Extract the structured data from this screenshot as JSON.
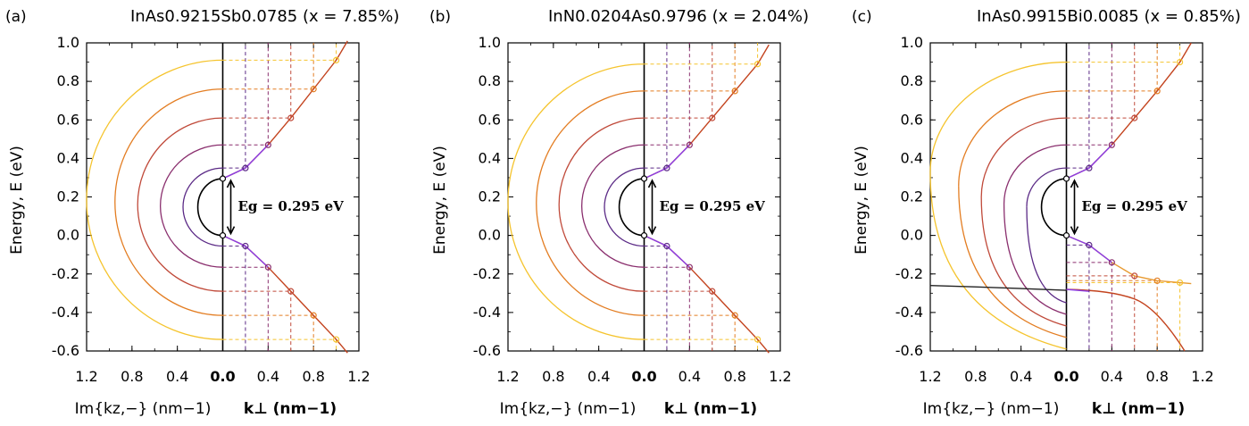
{
  "colors": {
    "levels": [
      "#5b2a86",
      "#8a2f6e",
      "#c04a3a",
      "#e37d22",
      "#f5c42e"
    ],
    "gap": "#000000",
    "dispersion_purple": "#8b3de6",
    "dispersion_red": "#c3431e",
    "dispersion_yellow": "#f2c12c"
  },
  "chart_data": [
    {
      "panel_letter": "(a)",
      "title_material": "InAs0.9215Sb0.0785",
      "title_x": "(x = 7.85%)",
      "type": "line",
      "ylabel": "Energy, E (eV)",
      "xlabel_left": "Im{kz,−} (nm−1)",
      "xlabel_right": "k⊥ (nm−1)",
      "ylim": [
        -0.6,
        1.0
      ],
      "xlim_left": [
        1.2,
        0.0
      ],
      "xlim_right": [
        0.0,
        1.2
      ],
      "yticks": [
        "-0.6",
        "-0.4",
        "-0.2",
        "0.0",
        "0.2",
        "0.4",
        "0.6",
        "0.8",
        "1.0"
      ],
      "xticks_left": [
        "1.2",
        "0.8",
        "0.4",
        "0.0"
      ],
      "xticks_right": [
        "0.4",
        "0.8",
        "1.2"
      ],
      "gap_label": "Eg = 0.295 eV",
      "gap": [
        0.0,
        0.295
      ],
      "bi_band": false,
      "k_points": [
        0.2,
        0.4,
        0.6,
        0.8,
        1.0
      ],
      "cb_energies": [
        0.35,
        0.47,
        0.61,
        0.76,
        0.91
      ],
      "vb_energies": [
        -0.055,
        -0.165,
        -0.29,
        -0.415,
        -0.54
      ],
      "semicircle_max_im": [
        0.35,
        0.55,
        0.75,
        0.95,
        1.2
      ]
    },
    {
      "panel_letter": "(b)",
      "title_material": "InN0.0204As0.9796",
      "title_x": "(x = 2.04%)",
      "type": "line",
      "ylabel": "Energy, E (eV)",
      "xlabel_left": "Im{kz,−} (nm−1)",
      "xlabel_right": "k⊥ (nm−1)",
      "ylim": [
        -0.6,
        1.0
      ],
      "xlim_left": [
        1.2,
        0.0
      ],
      "xlim_right": [
        0.0,
        1.2
      ],
      "yticks": [
        "-0.6",
        "-0.4",
        "-0.2",
        "0.0",
        "0.2",
        "0.4",
        "0.6",
        "0.8",
        "1.0"
      ],
      "xticks_left": [
        "1.2",
        "0.8",
        "0.4",
        "0.0"
      ],
      "xticks_right": [
        "0.4",
        "0.8",
        "1.2"
      ],
      "gap_label": "Eg = 0.295 eV",
      "gap": [
        0.0,
        0.295
      ],
      "bi_band": false,
      "k_points": [
        0.2,
        0.4,
        0.6,
        0.8,
        1.0
      ],
      "cb_energies": [
        0.35,
        0.47,
        0.61,
        0.75,
        0.89
      ],
      "vb_energies": [
        -0.055,
        -0.165,
        -0.29,
        -0.415,
        -0.54
      ],
      "semicircle_max_im": [
        0.35,
        0.55,
        0.75,
        0.95,
        1.2
      ]
    },
    {
      "panel_letter": "(c)",
      "title_material": "InAs0.9915Bi0.0085",
      "title_x": "(x = 0.85%)",
      "type": "line",
      "ylabel": "Energy, E (eV)",
      "xlabel_left": "Im{kz,−} (nm−1)",
      "xlabel_right": "k⊥ (nm−1)",
      "ylim": [
        -0.6,
        1.0
      ],
      "xlim_left": [
        1.2,
        0.0
      ],
      "xlim_right": [
        0.0,
        1.2
      ],
      "yticks": [
        "-0.6",
        "-0.4",
        "-0.2",
        "0.0",
        "0.2",
        "0.4",
        "0.6",
        "0.8",
        "1.0"
      ],
      "xticks_left": [
        "1.2",
        "0.8",
        "0.4",
        "0.0"
      ],
      "xticks_right": [
        "0.4",
        "0.8",
        "1.2"
      ],
      "gap_label": "Eg = 0.295 eV",
      "gap": [
        0.0,
        0.295
      ],
      "bi_band": true,
      "bi_level": -0.26,
      "k_points": [
        0.2,
        0.4,
        0.6,
        0.8,
        1.0
      ],
      "cb_energies": [
        0.35,
        0.47,
        0.61,
        0.75,
        0.9
      ],
      "vb_energies": [
        -0.05,
        -0.14,
        -0.21,
        -0.235,
        -0.245
      ],
      "semicircle_max_im": [
        0.35,
        0.55,
        0.75,
        0.95,
        1.2
      ]
    }
  ]
}
